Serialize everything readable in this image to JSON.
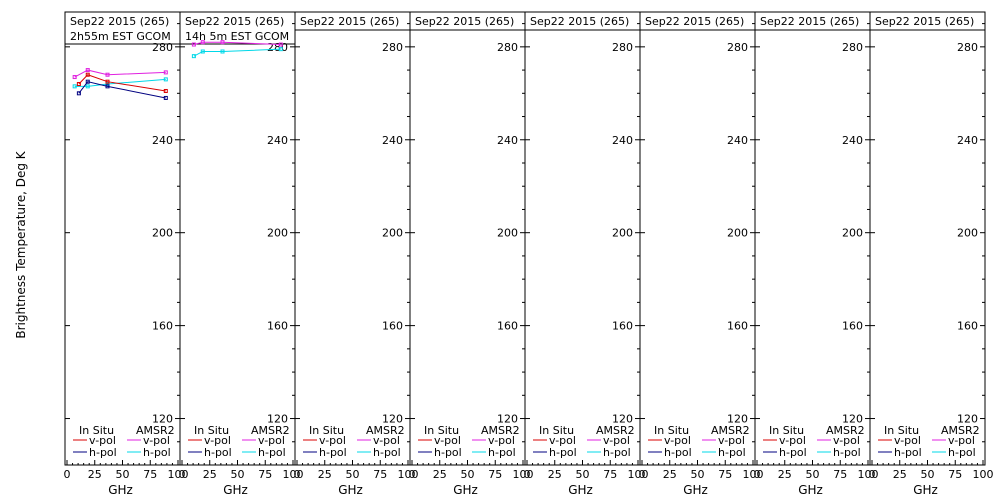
{
  "chart_data": {
    "type": "line",
    "ylabel": "Brightness Temperature, Deg K",
    "xlabel": "GHz",
    "xlim": [
      0,
      100
    ],
    "ylim": [
      100,
      295
    ],
    "xticks": [
      0,
      25,
      50,
      75,
      100
    ],
    "yticks": [
      120,
      160,
      200,
      240,
      280
    ],
    "legend": {
      "placement": "bottom",
      "col1_header": "In Situ",
      "col2_header": "AMSR2",
      "v_label": "v-pol",
      "h_label": "h-pol"
    },
    "colors": {
      "insitu_v": "#d80000",
      "insitu_h": "#000080",
      "amsr2_v": "#e020e0",
      "amsr2_h": "#00d8e8"
    },
    "panels": [
      {
        "title": "Sep22 2015 (265)",
        "subtitle": "2h55m EST GCOM",
        "series": [
          {
            "key": "amsr2_v",
            "x": [
              6.9,
              18.7,
              36.5,
              89
            ],
            "y": [
              267,
              270,
              268,
              269
            ]
          },
          {
            "key": "amsr2_h",
            "x": [
              6.9,
              18.7,
              36.5,
              89
            ],
            "y": [
              263,
              263,
              264,
              266
            ]
          },
          {
            "key": "insitu_v",
            "x": [
              10.7,
              18.7,
              36.5,
              89
            ],
            "y": [
              264,
              268,
              265,
              261
            ]
          },
          {
            "key": "insitu_h",
            "x": [
              10.7,
              18.7,
              36.5,
              89
            ],
            "y": [
              260,
              265,
              263,
              258
            ]
          }
        ]
      },
      {
        "title": "Sep22 2015 (265)",
        "subtitle": "14h 5m EST GCOM",
        "series": [
          {
            "key": "amsr2_v",
            "x": [
              10.7,
              18.7,
              36.5,
              89
            ],
            "y": [
              281,
              282,
              282,
              281
            ]
          },
          {
            "key": "amsr2_h",
            "x": [
              10.7,
              18.7,
              36.5,
              89
            ],
            "y": [
              276,
              278,
              278,
              279
            ]
          }
        ]
      },
      {
        "title": "Sep22 2015 (265)",
        "subtitle": "",
        "series": []
      },
      {
        "title": "Sep22 2015 (265)",
        "subtitle": "",
        "series": []
      },
      {
        "title": "Sep22 2015 (265)",
        "subtitle": "",
        "series": []
      },
      {
        "title": "Sep22 2015 (265)",
        "subtitle": "",
        "series": []
      },
      {
        "title": "Sep22 2015 (265)",
        "subtitle": "",
        "series": []
      },
      {
        "title": "Sep22 2015 (265)",
        "subtitle": "",
        "series": []
      }
    ]
  }
}
